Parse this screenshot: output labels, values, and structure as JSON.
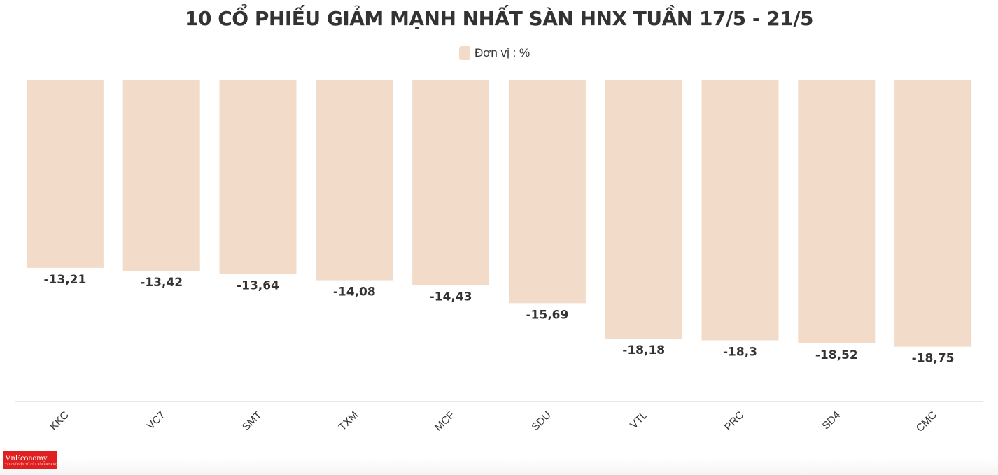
{
  "title": "10 CỔ PHIẾU GIẢM MẠNH NHẤT SÀN HNX TUẦN 17/5 - 21/5",
  "legend": {
    "label": "Đơn vị : %"
  },
  "colors": {
    "bar": "#f2dcc9",
    "text": "#333333",
    "axis": "#dddddd",
    "logo": "#e02020"
  },
  "logo": {
    "text": "VnEconomy",
    "subtext": "TẠP CHÍ ĐIỆN TỬ CỦA HỘI KHOA HỌC KINH TẾ VIỆT NAM"
  },
  "chart_data": {
    "type": "bar",
    "title": "10 CỔ PHIẾU GIẢM MẠNH NHẤT SÀN HNX TUẦN 17/5 - 21/5",
    "categories": [
      "KKC",
      "VC7",
      "SMT",
      "TXM",
      "MCF",
      "SDU",
      "VTL",
      "PRC",
      "SD4",
      "CMC"
    ],
    "series": [
      {
        "name": "Đơn vị : %",
        "values": [
          -13.21,
          -13.42,
          -13.64,
          -14.08,
          -14.43,
          -15.69,
          -18.18,
          -18.3,
          -18.52,
          -18.75
        ],
        "labels": [
          "-13,21",
          "-13,42",
          "-13,64",
          "-14,08",
          "-14,43",
          "-15,69",
          "-18,18",
          "-18,3",
          "-18,52",
          "-18,75"
        ]
      }
    ],
    "xlabel": "",
    "ylabel": "",
    "ylim": [
      -22.6,
      0
    ],
    "grid": false,
    "legend_position": "top-center"
  }
}
